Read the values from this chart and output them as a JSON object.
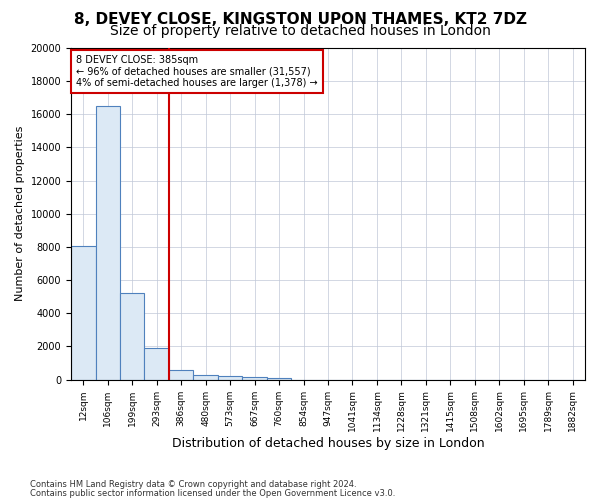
{
  "title1": "8, DEVEY CLOSE, KINGSTON UPON THAMES, KT2 7DZ",
  "title2": "Size of property relative to detached houses in London",
  "xlabel": "Distribution of detached houses by size in London",
  "ylabel": "Number of detached properties",
  "footer1": "Contains HM Land Registry data © Crown copyright and database right 2024.",
  "footer2": "Contains public sector information licensed under the Open Government Licence v3.0.",
  "bins": [
    "12sqm",
    "106sqm",
    "199sqm",
    "293sqm",
    "386sqm",
    "480sqm",
    "573sqm",
    "667sqm",
    "760sqm",
    "854sqm",
    "947sqm",
    "1041sqm",
    "1134sqm",
    "1228sqm",
    "1321sqm",
    "1415sqm",
    "1508sqm",
    "1602sqm",
    "1695sqm",
    "1789sqm",
    "1882sqm"
  ],
  "values": [
    8050,
    16500,
    5200,
    1900,
    550,
    280,
    190,
    130,
    110,
    0,
    0,
    0,
    0,
    0,
    0,
    0,
    0,
    0,
    0,
    0,
    0
  ],
  "bar_color": "#dce9f5",
  "bar_edge_color": "#4f81bd",
  "vline_bin_index": 4,
  "vline_color": "#cc0000",
  "annotation_title": "8 DEVEY CLOSE: 385sqm",
  "annotation_line1": "← 96% of detached houses are smaller (31,557)",
  "annotation_line2": "4% of semi-detached houses are larger (1,378) →",
  "annotation_box_color": "#ffffff",
  "annotation_box_edge": "#cc0000",
  "ylim": [
    0,
    20000
  ],
  "yticks": [
    0,
    2000,
    4000,
    6000,
    8000,
    10000,
    12000,
    14000,
    16000,
    18000,
    20000
  ],
  "title1_fontsize": 11,
  "title2_fontsize": 10,
  "xlabel_fontsize": 9,
  "ylabel_fontsize": 8
}
